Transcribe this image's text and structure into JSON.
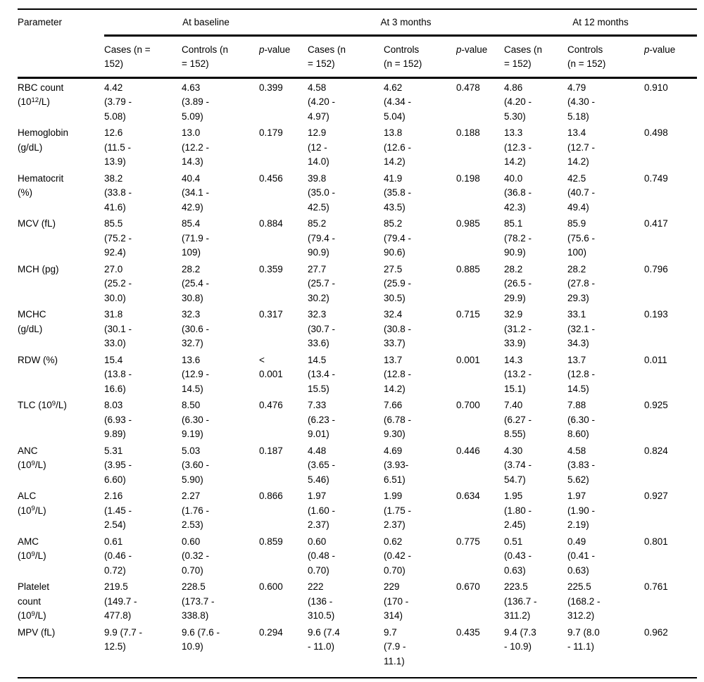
{
  "table": {
    "colors": {
      "text": "#000000",
      "background": "#ffffff",
      "rule": "#000000"
    },
    "param_header": "Parameter",
    "groups": [
      {
        "label": "At baseline"
      },
      {
        "label": "At 3 months"
      },
      {
        "label": "At 12 months"
      }
    ],
    "sub_headers": [
      [
        {
          "t": "Cases (n =\n152)"
        }
      ],
      [
        {
          "t": "Controls (n\n= 152)"
        }
      ],
      [
        {
          "t": "p",
          "italic": true
        },
        {
          "t": "-value"
        }
      ],
      [
        {
          "t": "Cases (n\n= 152)"
        }
      ],
      [
        {
          "t": "Controls\n(n = 152)"
        }
      ],
      [
        {
          "t": "p",
          "italic": true
        },
        {
          "t": "-value"
        }
      ],
      [
        {
          "t": "Cases (n\n= 152)"
        }
      ],
      [
        {
          "t": "Controls\n(n = 152)"
        }
      ],
      [
        {
          "t": "p",
          "italic": true
        },
        {
          "t": "-value"
        }
      ]
    ],
    "rows": [
      {
        "param": [
          {
            "t": "RBC count\n(10"
          },
          {
            "t": "12",
            "sup": true
          },
          {
            "t": "/L)"
          }
        ],
        "cells": [
          "4.42\n(3.79 -\n5.08)",
          "4.63\n(3.89 -\n5.09)",
          "0.399",
          "4.58\n(4.20 -\n4.97)",
          "4.62\n(4.34 -\n5.04)",
          "0.478",
          "4.86\n(4.20 -\n5.30)",
          "4.79\n(4.30 -\n5.18)",
          "0.910"
        ]
      },
      {
        "param": [
          {
            "t": "Hemoglobin\n(g/dL)"
          }
        ],
        "cells": [
          "12.6\n(11.5 -\n13.9)",
          "13.0\n(12.2 -\n14.3)",
          "0.179",
          "12.9\n(12 -\n14.0)",
          "13.8\n(12.6 -\n14.2)",
          "0.188",
          "13.3\n(12.3 -\n14.2)",
          "13.4\n(12.7 -\n14.2)",
          "0.498"
        ]
      },
      {
        "param": [
          {
            "t": "Hematocrit\n(%)"
          }
        ],
        "cells": [
          "38.2\n(33.8 -\n41.6)",
          "40.4\n(34.1 -\n42.9)",
          "0.456",
          "39.8\n(35.0 -\n42.5)",
          "41.9\n(35.8 -\n43.5)",
          "0.198",
          "40.0\n(36.8 -\n42.3)",
          "42.5\n(40.7 -\n49.4)",
          "0.749"
        ]
      },
      {
        "param": [
          {
            "t": "MCV (fL)"
          }
        ],
        "cells": [
          "85.5\n(75.2 -\n92.4)",
          "85.4\n(71.9 -\n109)",
          "0.884",
          "85.2\n(79.4 -\n90.9)",
          "85.2\n(79.4 -\n90.6)",
          "0.985",
          "85.1\n(78.2 -\n90.9)",
          "85.9\n(75.6 -\n100)",
          "0.417"
        ]
      },
      {
        "param": [
          {
            "t": "MCH (pg)"
          }
        ],
        "cells": [
          "27.0\n(25.2 -\n30.0)",
          "28.2\n(25.4 -\n30.8)",
          "0.359",
          "27.7\n(25.7 -\n30.2)",
          "27.5\n(25.9 -\n30.5)",
          "0.885",
          "28.2\n(26.5 -\n29.9)",
          "28.2\n(27.8 -\n29.3)",
          "0.796"
        ]
      },
      {
        "param": [
          {
            "t": "MCHC\n(g/dL)"
          }
        ],
        "cells": [
          "31.8\n(30.1 -\n33.0)",
          "32.3\n(30.6 -\n32.7)",
          "0.317",
          "32.3\n(30.7 -\n33.6)",
          "32.4\n(30.8 -\n33.7)",
          "0.715",
          "32.9\n(31.2 -\n33.9)",
          "33.1\n(32.1 -\n34.3)",
          "0.193"
        ]
      },
      {
        "param": [
          {
            "t": "RDW (%)"
          }
        ],
        "cells": [
          "15.4\n(13.8 -\n16.6)",
          "13.6\n(12.9 -\n14.5)",
          "<\n0.001",
          "14.5\n(13.4 -\n15.5)",
          "13.7\n(12.8 -\n14.2)",
          "0.001",
          "14.3\n(13.2 -\n15.1)",
          "13.7\n(12.8 -\n14.5)",
          "0.011"
        ]
      },
      {
        "param": [
          {
            "t": "TLC (10"
          },
          {
            "t": "9",
            "sup": true
          },
          {
            "t": "/L)"
          }
        ],
        "cells": [
          "8.03\n(6.93 -\n9.89)",
          "8.50\n(6.30 -\n9.19)",
          "0.476",
          "7.33\n(6.23 -\n9.01)",
          "7.66\n(6.78 -\n9.30)",
          "0.700",
          "7.40\n(6.27 -\n8.55)",
          "7.88\n(6.30 -\n8.60)",
          "0.925"
        ]
      },
      {
        "param": [
          {
            "t": "ANC\n(10"
          },
          {
            "t": "9",
            "sup": true
          },
          {
            "t": "/L)"
          }
        ],
        "cells": [
          "5.31\n(3.95 -\n6.60)",
          "5.03\n(3.60 -\n5.90)",
          "0.187",
          "4.48\n(3.65 -\n5.46)",
          "4.69\n(3.93-\n6.51)",
          "0.446",
          "4.30\n(3.74 -\n54.7)",
          "4.58\n(3.83 -\n5.62)",
          "0.824"
        ]
      },
      {
        "param": [
          {
            "t": "ALC\n(10"
          },
          {
            "t": "9",
            "sup": true
          },
          {
            "t": "/L)"
          }
        ],
        "cells": [
          "2.16\n(1.45 -\n2.54)",
          "2.27\n(1.76 -\n2.53)",
          "0.866",
          "1.97\n(1.60 -\n2.37)",
          "1.99\n(1.75 -\n2.37)",
          "0.634",
          "1.95\n(1.80 -\n2.45)",
          "1.97\n(1.90 -\n2.19)",
          "0.927"
        ]
      },
      {
        "param": [
          {
            "t": "AMC\n(10"
          },
          {
            "t": "9",
            "sup": true
          },
          {
            "t": "/L)"
          }
        ],
        "cells": [
          "0.61\n(0.46 -\n0.72)",
          "0.60\n(0.32 -\n0.70)",
          "0.859",
          "0.60\n(0.48 -\n0.70)",
          "0.62\n(0.42 -\n0.70)",
          "0.775",
          "0.51\n(0.43 -\n0.63)",
          "0.49\n(0.41 -\n0.63)",
          "0.801"
        ]
      },
      {
        "param": [
          {
            "t": "Platelet\ncount\n(10"
          },
          {
            "t": "9",
            "sup": true
          },
          {
            "t": "/L)"
          }
        ],
        "cells": [
          "219.5\n(149.7 -\n477.8)",
          "228.5\n(173.7 -\n338.8)",
          "0.600",
          "222\n(136 -\n310.5)",
          "229\n(170 -\n314)",
          "0.670",
          "223.5\n(136.7 -\n311.2)",
          "225.5\n(168.2 -\n312.2)",
          "0.761"
        ]
      },
      {
        "param": [
          {
            "t": "MPV (fL)"
          }
        ],
        "cells": [
          "9.9 (7.7 -\n12.5)",
          "9.6 (7.6 -\n10.9)",
          "0.294",
          "9.6 (7.4\n- 11.0)",
          "9.7\n(7.9 -\n11.1)",
          "0.435",
          "9.4 (7.3\n- 10.9)",
          "9.7 (8.0\n- 11.1)",
          "0.962"
        ]
      }
    ]
  }
}
